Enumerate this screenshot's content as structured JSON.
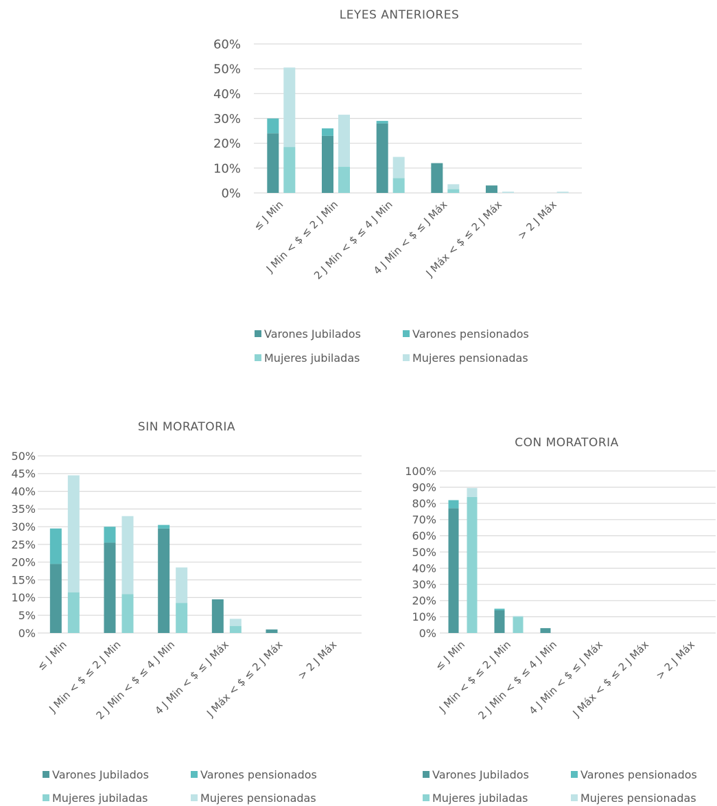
{
  "colors": {
    "varones_jubilados": "#4E9A9C",
    "varones_pensionados": "#5BBDBF",
    "mujeres_jubiladas": "#8DD4D3",
    "mujeres_pensionadas": "#BFE3E6",
    "grid": "#D9D9D9",
    "text": "#595959"
  },
  "legend": {
    "varones_jubilados": "Varones Jubilados",
    "varones_pensionados": "Varones pensionados",
    "mujeres_jubiladas": "Mujeres jubiladas",
    "mujeres_pensionadas": "Mujeres pensionadas"
  },
  "chart_data": [
    {
      "type": "bar",
      "stacked": true,
      "title": "LEYES ANTERIORES",
      "categories": [
        "≤ J Min",
        "J Min < $ ≤ 2 J Min",
        "2 J Min < $ ≤ 4 J Min",
        "4 J Min < $ ≤ J Máx",
        "J Máx < $ ≤ 2 J Máx",
        "> 2 J Máx"
      ],
      "y_ticks": [
        "0%",
        "10%",
        "20%",
        "30%",
        "40%",
        "50%",
        "60%"
      ],
      "ylim": [
        0,
        60
      ],
      "grid": true,
      "legend_position": "bottom",
      "series": [
        {
          "name": "Varones Jubilados",
          "stack": "varones",
          "values": [
            24,
            23,
            28,
            12,
            3,
            0
          ]
        },
        {
          "name": "Varones pensionados",
          "stack": "varones",
          "values": [
            6,
            3,
            1,
            0,
            0,
            0
          ]
        },
        {
          "name": "Mujeres jubiladas",
          "stack": "mujeres",
          "values": [
            18.5,
            10.5,
            6,
            1.5,
            0,
            0
          ]
        },
        {
          "name": "Mujeres pensionadas",
          "stack": "mujeres",
          "values": [
            32,
            21,
            8.5,
            2,
            0.5,
            0.5
          ]
        }
      ]
    },
    {
      "type": "bar",
      "stacked": true,
      "title": "SIN MORATORIA",
      "categories": [
        "≤ J Min",
        "J Min < $ ≤ 2 J Min",
        "2 J Min < $ ≤ 4 J Min",
        "4 J Min < $ ≤ J Máx",
        "J Máx < $ ≤ 2 J Máx",
        "> 2 J Máx"
      ],
      "y_ticks": [
        "0%",
        "5%",
        "10%",
        "15%",
        "20%",
        "25%",
        "30%",
        "35%",
        "40%",
        "45%",
        "50%"
      ],
      "ylim": [
        0,
        50
      ],
      "grid": true,
      "legend_position": "bottom",
      "series": [
        {
          "name": "Varones Jubilados",
          "stack": "varones",
          "values": [
            19.5,
            25.5,
            29.5,
            9.5,
            1,
            0
          ]
        },
        {
          "name": "Varones pensionados",
          "stack": "varones",
          "values": [
            10,
            4.5,
            1,
            0,
            0,
            0
          ]
        },
        {
          "name": "Mujeres jubiladas",
          "stack": "mujeres",
          "values": [
            11.5,
            11,
            8.5,
            2,
            0,
            0
          ]
        },
        {
          "name": "Mujeres pensionadas",
          "stack": "mujeres",
          "values": [
            33,
            22,
            10,
            2,
            0,
            0
          ]
        }
      ]
    },
    {
      "type": "bar",
      "stacked": true,
      "title": "CON MORATORIA",
      "categories": [
        "≤ J Min",
        "J Min < $ ≤ 2 J Min",
        "2 J Min < $ ≤ 4 J Min",
        "4 J Min < $ ≤ J Máx",
        "J Máx < $ ≤ 2 J Máx",
        "> 2 J Máx"
      ],
      "y_ticks": [
        "0%",
        "10%",
        "20%",
        "30%",
        "40%",
        "50%",
        "60%",
        "70%",
        "80%",
        "90%",
        "100%"
      ],
      "ylim": [
        0,
        100
      ],
      "grid": true,
      "legend_position": "bottom",
      "series": [
        {
          "name": "Varones Jubilados",
          "stack": "varones",
          "values": [
            77,
            14,
            3,
            0,
            0,
            0
          ]
        },
        {
          "name": "Varones pensionados",
          "stack": "varones",
          "values": [
            5,
            1,
            0,
            0,
            0,
            0
          ]
        },
        {
          "name": "Mujeres jubiladas",
          "stack": "mujeres",
          "values": [
            84,
            10,
            0,
            0,
            0,
            0
          ]
        },
        {
          "name": "Mujeres pensionadas",
          "stack": "mujeres",
          "values": [
            5.5,
            0.5,
            0,
            0,
            0,
            0
          ]
        }
      ]
    }
  ]
}
